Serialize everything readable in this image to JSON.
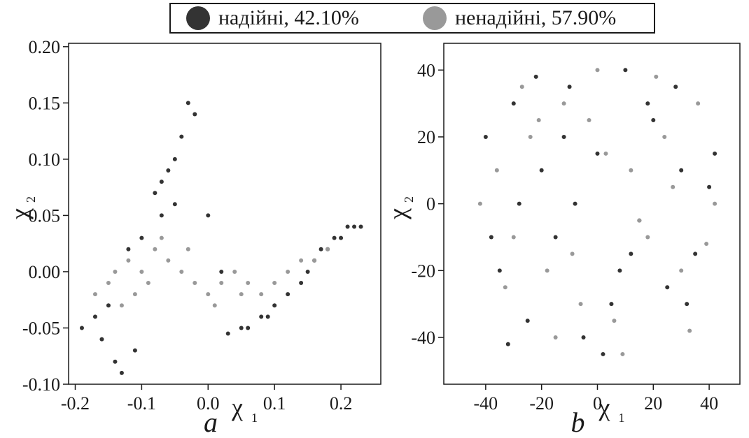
{
  "legend": [
    {
      "label": "надійні, 42.10%",
      "color": "#333333"
    },
    {
      "label": "ненадійні, 57.90%",
      "color": "#999999"
    }
  ],
  "chart_data": [
    {
      "type": "scatter",
      "panel_label": "a",
      "xlabel": "χ",
      "xlabel_sub": "1",
      "ylabel": "χ",
      "ylabel_sub": "2",
      "xlim": [
        -0.21,
        0.26
      ],
      "ylim": [
        -0.1,
        0.203
      ],
      "xticks": [
        -0.2,
        -0.1,
        0.0,
        0.1,
        0.2
      ],
      "xtick_labels": [
        "-0.2",
        "-0.1",
        "0.0",
        "0.1",
        "0.2"
      ],
      "yticks": [
        -0.1,
        -0.05,
        0.0,
        0.05,
        0.1,
        0.15,
        0.2
      ],
      "ytick_labels": [
        "-0.10",
        "-0.05",
        "0.00",
        "0.05",
        "0.10",
        "0.15",
        "0.20"
      ],
      "series": [
        {
          "name": "надійні, 42.10%",
          "color": "#333333",
          "x": [
            -0.19,
            -0.17,
            -0.15,
            -0.12,
            -0.1,
            -0.08,
            -0.07,
            -0.06,
            -0.05,
            -0.04,
            -0.03,
            -0.02,
            0.0,
            0.02,
            0.05,
            0.08,
            0.1,
            0.12,
            0.14,
            0.15,
            0.16,
            0.17,
            0.18,
            0.19,
            0.2,
            0.21,
            0.22,
            0.23,
            -0.14,
            -0.13,
            -0.16,
            -0.11,
            0.03,
            0.06,
            0.09,
            -0.05,
            -0.07
          ],
          "y": [
            -0.05,
            -0.04,
            -0.03,
            0.02,
            0.03,
            0.07,
            0.08,
            0.09,
            0.1,
            0.12,
            0.15,
            0.14,
            0.05,
            0.0,
            -0.05,
            -0.04,
            -0.03,
            -0.02,
            -0.01,
            0.0,
            0.01,
            0.02,
            0.02,
            0.03,
            0.03,
            0.04,
            0.04,
            0.04,
            -0.08,
            -0.09,
            -0.06,
            -0.07,
            -0.055,
            -0.05,
            -0.04,
            0.06,
            0.05
          ]
        },
        {
          "name": "ненадійні, 57.90%",
          "color": "#999999",
          "x": [
            -0.17,
            -0.15,
            -0.14,
            -0.12,
            -0.1,
            -0.09,
            -0.08,
            -0.06,
            -0.04,
            -0.02,
            0.0,
            0.02,
            0.04,
            0.06,
            0.08,
            0.1,
            0.12,
            0.14,
            0.16,
            0.18,
            -0.13,
            -0.11,
            -0.07,
            -0.03,
            0.01,
            0.05
          ],
          "y": [
            -0.02,
            -0.01,
            0.0,
            0.01,
            0.0,
            -0.01,
            0.02,
            0.01,
            0.0,
            -0.01,
            -0.02,
            -0.01,
            0.0,
            -0.01,
            -0.02,
            -0.01,
            0.0,
            0.01,
            0.01,
            0.02,
            -0.03,
            -0.02,
            0.03,
            0.02,
            -0.03,
            -0.02
          ]
        }
      ]
    },
    {
      "type": "scatter",
      "panel_label": "b",
      "xlabel": "χ",
      "xlabel_sub": "1",
      "ylabel": "χ",
      "ylabel_sub": "2",
      "xlim": [
        -55,
        51
      ],
      "ylim": [
        -54,
        48
      ],
      "xticks": [
        -40,
        -20,
        0,
        20,
        40
      ],
      "xtick_labels": [
        "-40",
        "-20",
        "0",
        "20",
        "40"
      ],
      "yticks": [
        -40,
        -20,
        0,
        20,
        40
      ],
      "ytick_labels": [
        "-40",
        "-20",
        "0",
        "20",
        "40"
      ],
      "series": [
        {
          "name": "надійні, 42.10%",
          "color": "#333333",
          "x": [
            -40,
            -35,
            -30,
            -25,
            -20,
            -15,
            -10,
            -5,
            0,
            5,
            10,
            15,
            20,
            25,
            30,
            35,
            40,
            -38,
            -28,
            -12,
            8,
            18,
            32,
            42,
            -22,
            2,
            12,
            28,
            -32,
            -8
          ],
          "y": [
            20,
            -20,
            30,
            -35,
            10,
            -10,
            35,
            -40,
            15,
            -30,
            40,
            -5,
            25,
            -25,
            10,
            -15,
            5,
            -10,
            0,
            20,
            -20,
            30,
            -30,
            15,
            38,
            -45,
            -15,
            35,
            -42,
            0
          ]
        },
        {
          "name": "ненадійні, 57.90%",
          "color": "#999999",
          "x": [
            -42,
            -36,
            -30,
            -24,
            -18,
            -12,
            -6,
            0,
            6,
            12,
            18,
            24,
            30,
            36,
            42,
            -33,
            -21,
            -9,
            3,
            15,
            27,
            39,
            -27,
            -3,
            21,
            33,
            -15,
            9
          ],
          "y": [
            0,
            10,
            -10,
            20,
            -20,
            30,
            -30,
            40,
            -35,
            10,
            -10,
            20,
            -20,
            30,
            0,
            -25,
            25,
            -15,
            15,
            -5,
            5,
            -12,
            35,
            25,
            38,
            -38,
            -40,
            -45
          ]
        }
      ]
    }
  ]
}
